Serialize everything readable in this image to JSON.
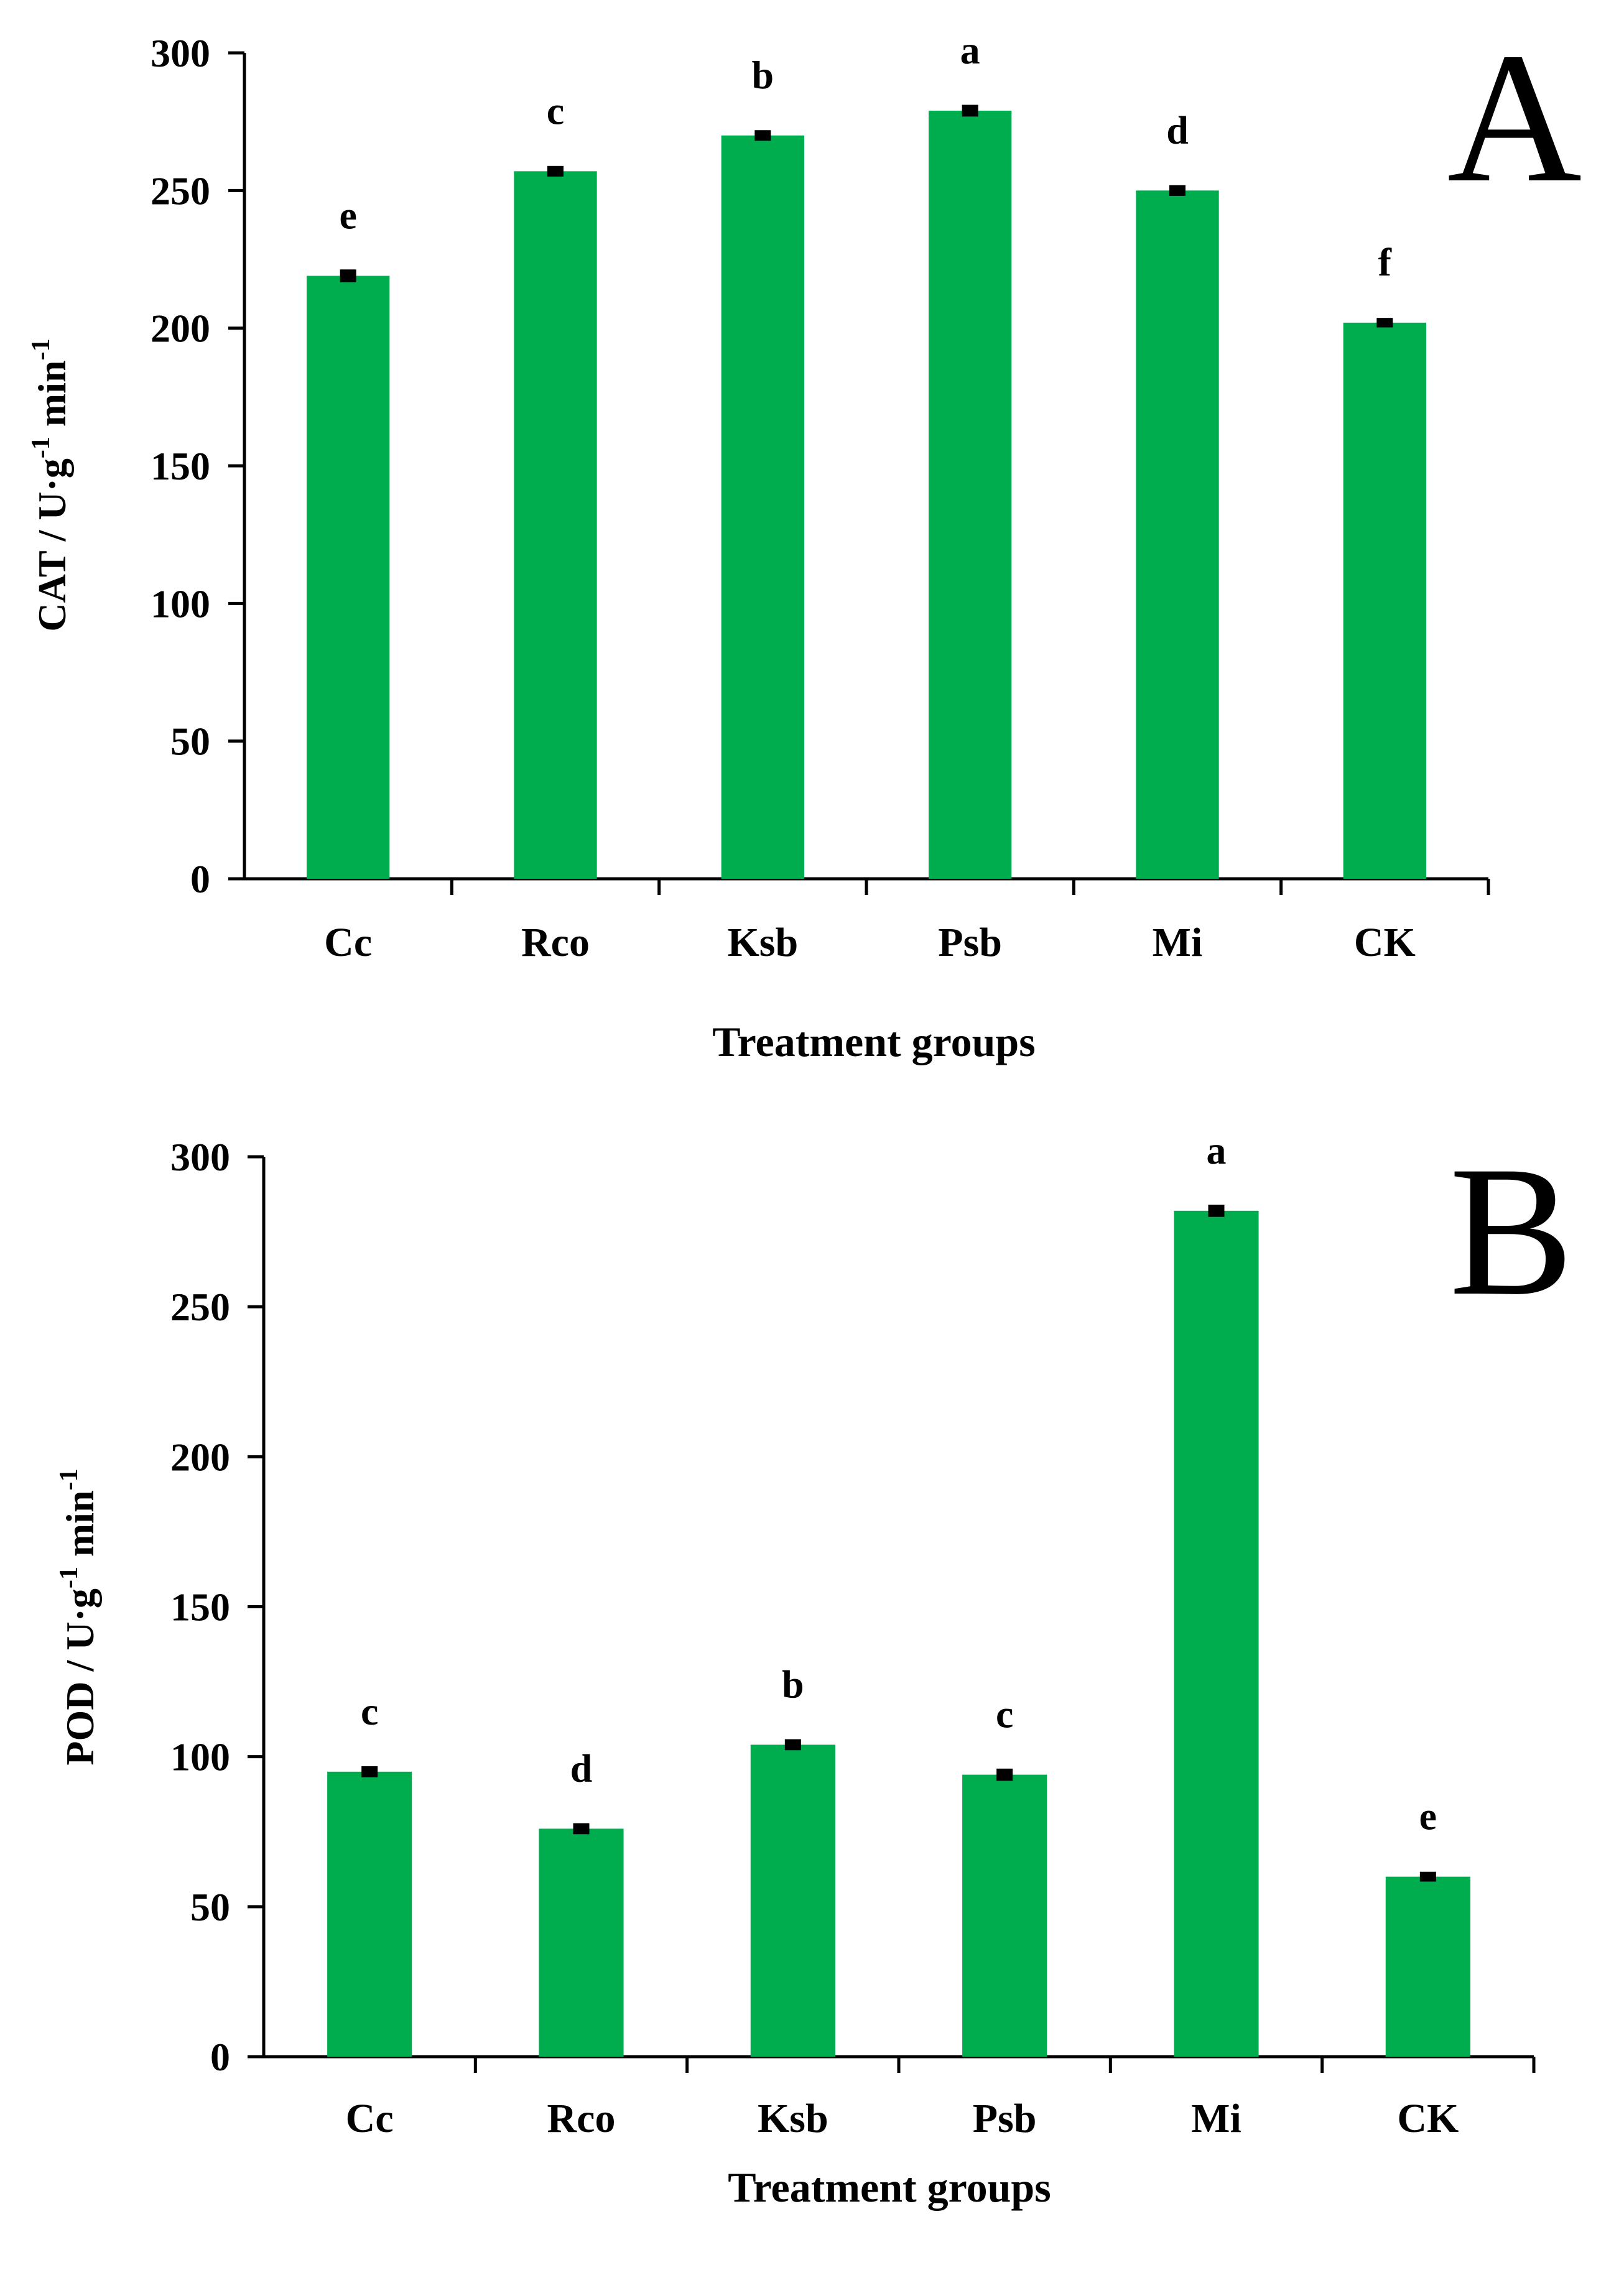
{
  "chart_data": [
    {
      "type": "bar",
      "panel": "A",
      "title": "",
      "categories": [
        "Cc",
        "Rco",
        "Ksb",
        "Psb",
        "Mi",
        "CK"
      ],
      "values": [
        219,
        257,
        270,
        279,
        250,
        202
      ],
      "errors": [
        1.2,
        0.8,
        0.8,
        1.0,
        0.8,
        0.6
      ],
      "significance": [
        "e",
        "c",
        "b",
        "a",
        "d",
        "f"
      ],
      "xlabel": "Treatment groups",
      "ylabel": {
        "prefix": "CAT / U·g",
        "sup1": "-1",
        "middle": " min",
        "sup2": "-1"
      },
      "ylim": [
        0,
        300
      ],
      "yticks": [
        "0",
        "50",
        "100",
        "150",
        "200",
        "250",
        "300"
      ],
      "color": "#00ad4e",
      "grid": false
    },
    {
      "type": "bar",
      "panel": "B",
      "title": "",
      "categories": [
        "Cc",
        "Rco",
        "Ksb",
        "Psb",
        "Mi",
        "CK"
      ],
      "values": [
        95,
        76,
        104,
        94,
        282,
        60
      ],
      "errors": [
        0.8,
        0.8,
        0.8,
        1.0,
        1.0,
        0.6
      ],
      "significance": [
        "c",
        "d",
        "b",
        "c",
        "a",
        "e"
      ],
      "xlabel": "Treatment groups",
      "ylabel": {
        "prefix": "POD / U·g",
        "sup1": "-1",
        "middle": " min",
        "sup2": "-1"
      },
      "ylim": [
        0,
        300
      ],
      "yticks": [
        "0",
        "50",
        "100",
        "150",
        "200",
        "250",
        "300"
      ],
      "color": "#00ad4e",
      "grid": false
    }
  ]
}
